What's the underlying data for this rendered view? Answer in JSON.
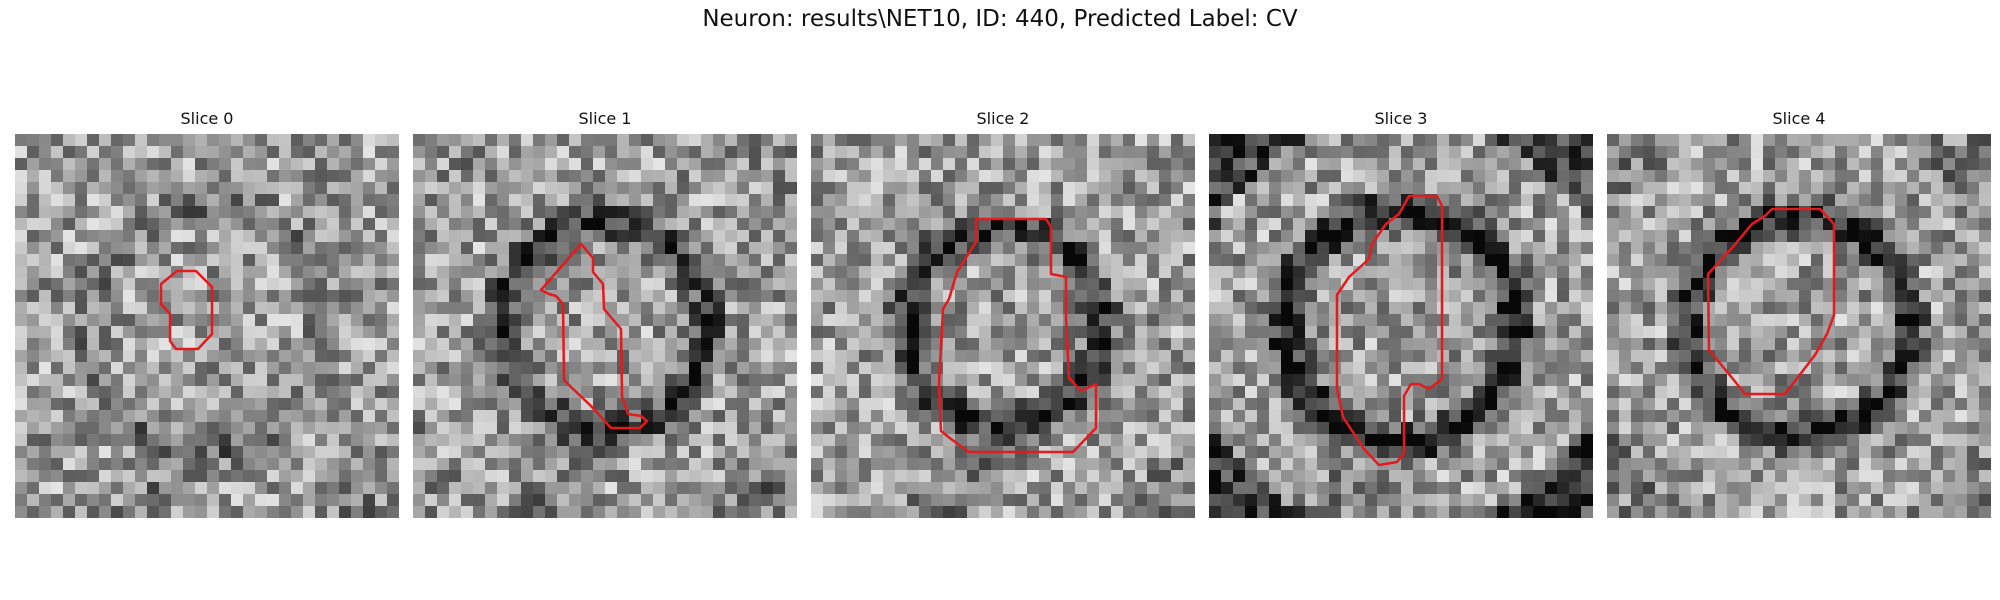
{
  "figure": {
    "title": "Neuron: results\\NET10, ID: 440, Predicted Label: CV",
    "outline_color": "#e41a1c",
    "panels": [
      {
        "label": "Slice 0"
      },
      {
        "label": "Slice 1"
      },
      {
        "label": "Slice 2"
      },
      {
        "label": "Slice 3"
      },
      {
        "label": "Slice 4"
      }
    ]
  }
}
